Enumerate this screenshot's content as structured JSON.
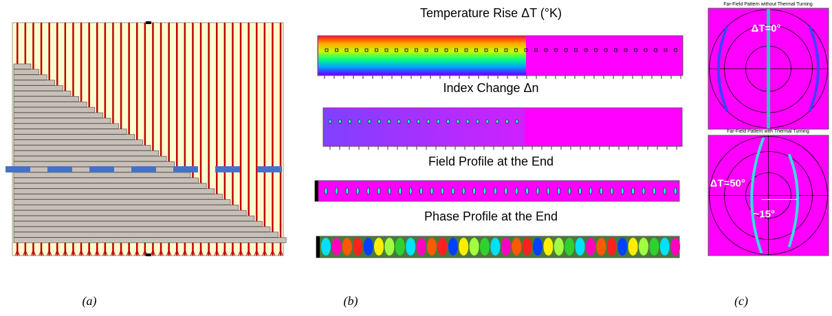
{
  "panel_b": {
    "titles": [
      "Temperature Rise ΔT (°K)",
      "Index Change Δn",
      "Field Profile at the End",
      "Phase Profile at the End"
    ]
  },
  "panel_c": {
    "top_title": "Far-Field Pattern without Thermal Turning",
    "top_label": "ΔT=0°",
    "bottom_title": "Far-Field Pattern with Thermal Turning",
    "bottom_label": "ΔT=50°",
    "angle_label": "~15°"
  },
  "captions": [
    "(a)",
    "(b)",
    "(c)"
  ]
}
